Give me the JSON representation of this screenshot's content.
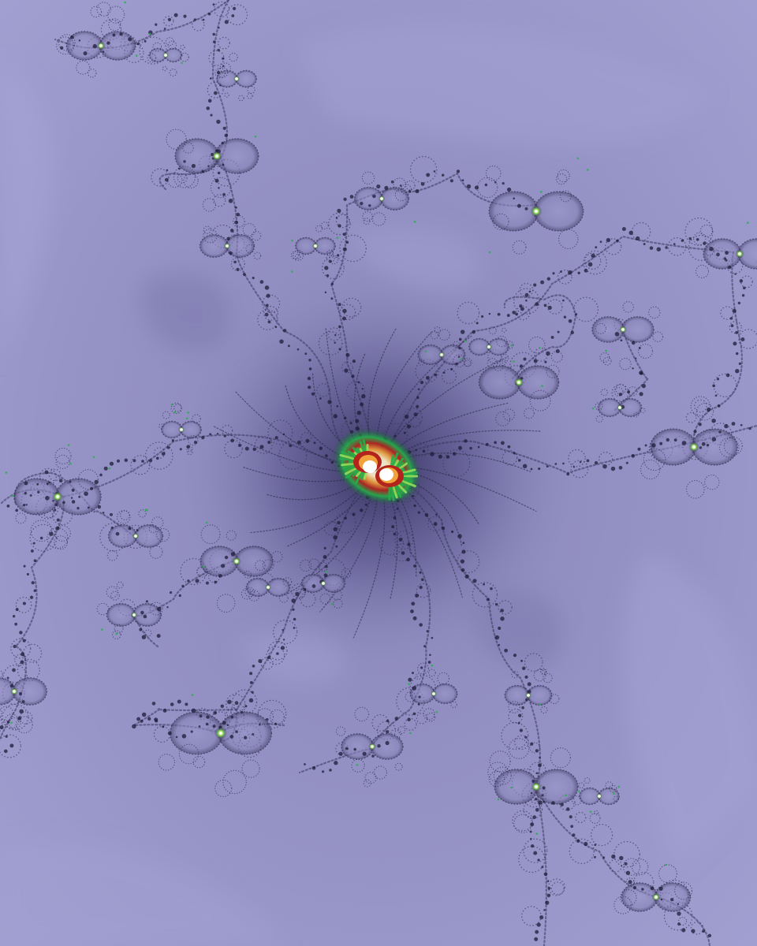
{
  "image": {
    "kind": "fractal-render",
    "palette": {
      "background_light": "#a3a1d2",
      "background_mid": "#9491c4",
      "background_dark": "#7f7bb2",
      "filament": "#3a365e",
      "filament_dark": "#1e1b38",
      "core_white": "#ffffff",
      "core_orange": "#f2a23a",
      "core_red": "#b3241c",
      "core_green": "#22b04a",
      "core_lime": "#8fe05a"
    }
  }
}
